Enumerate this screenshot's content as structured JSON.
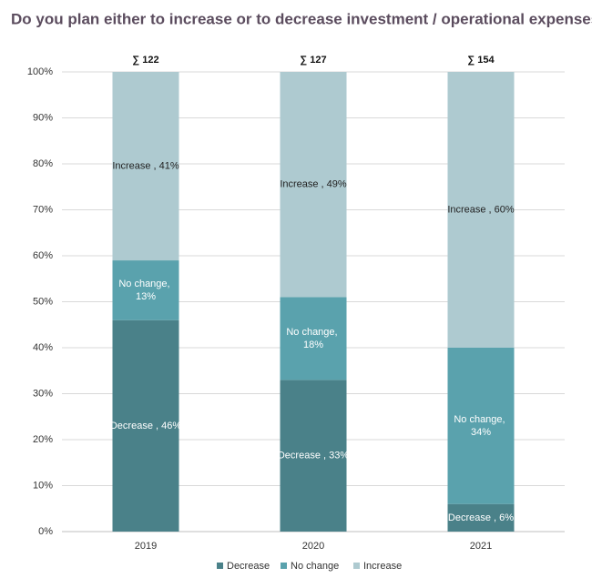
{
  "chart_data": {
    "type": "stacked_bar_percent",
    "title": "Do you plan either to increase or to decrease investment / operational expenses?",
    "categories": [
      "2019",
      "2020",
      "2021"
    ],
    "annotations": [
      "∑ 122",
      "∑ 127",
      "∑ 154"
    ],
    "series": [
      {
        "name": "Decrease",
        "color": "#4a8189",
        "values": [
          46,
          33,
          6
        ],
        "value_labels": [
          "Decrease , 46%",
          "Decrease , 33%",
          "Decrease , 6%"
        ]
      },
      {
        "name": "No change",
        "color": "#5aa2ad",
        "values": [
          13,
          18,
          34
        ],
        "value_labels": [
          "No change, 13%",
          "No change, 18%",
          "No change, 34%"
        ]
      },
      {
        "name": "Increase",
        "color": "#aecad0",
        "values": [
          41,
          49,
          60
        ],
        "value_labels": [
          "Increase , 41%",
          "Increase , 49%",
          "Increase , 60%"
        ]
      }
    ],
    "ylim": [
      0,
      100
    ],
    "yticks": [
      {
        "value": 0,
        "label": "0%"
      },
      {
        "value": 10,
        "label": "10%"
      },
      {
        "value": 20,
        "label": "20%"
      },
      {
        "value": 30,
        "label": "30%"
      },
      {
        "value": 40,
        "label": "40%"
      },
      {
        "value": 50,
        "label": "50%"
      },
      {
        "value": 60,
        "label": "60%"
      },
      {
        "value": 70,
        "label": "70%"
      },
      {
        "value": 80,
        "label": "80%"
      },
      {
        "value": 90,
        "label": "90%"
      },
      {
        "value": 100,
        "label": "100%"
      }
    ],
    "grid": true,
    "legend": "bottom"
  }
}
